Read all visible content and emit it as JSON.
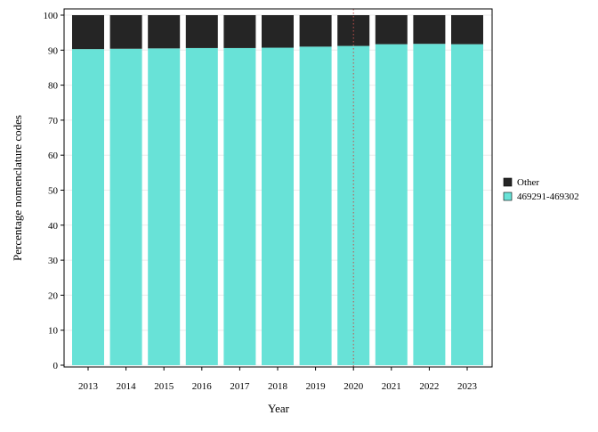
{
  "chart_data": {
    "type": "bar",
    "stacked": true,
    "categories": [
      "2013",
      "2014",
      "2015",
      "2016",
      "2017",
      "2018",
      "2019",
      "2020",
      "2021",
      "2022",
      "2023"
    ],
    "series": [
      {
        "name": "469291-469302",
        "color": "#68E2D7",
        "values": [
          90.3,
          90.4,
          90.5,
          90.6,
          90.6,
          90.7,
          91.0,
          91.2,
          91.7,
          91.8,
          91.7
        ]
      },
      {
        "name": "Other",
        "color": "#252525",
        "values": [
          9.7,
          9.6,
          9.5,
          9.4,
          9.4,
          9.3,
          9.0,
          8.8,
          8.3,
          8.2,
          8.3
        ]
      }
    ],
    "xlabel": "Year",
    "ylabel": "Percentage nomenclature codes",
    "ylim": [
      0,
      100
    ],
    "yticks": [
      0,
      10,
      20,
      30,
      40,
      50,
      60,
      70,
      80,
      90,
      100
    ],
    "reference_line": {
      "x": "2020",
      "style": "dotted",
      "color": "#C0504D"
    },
    "legend": {
      "placement": "right",
      "items": [
        {
          "label": "Other",
          "color": "#252525"
        },
        {
          "label": "469291-469302",
          "color": "#68E2D7"
        }
      ]
    },
    "grid": true
  }
}
